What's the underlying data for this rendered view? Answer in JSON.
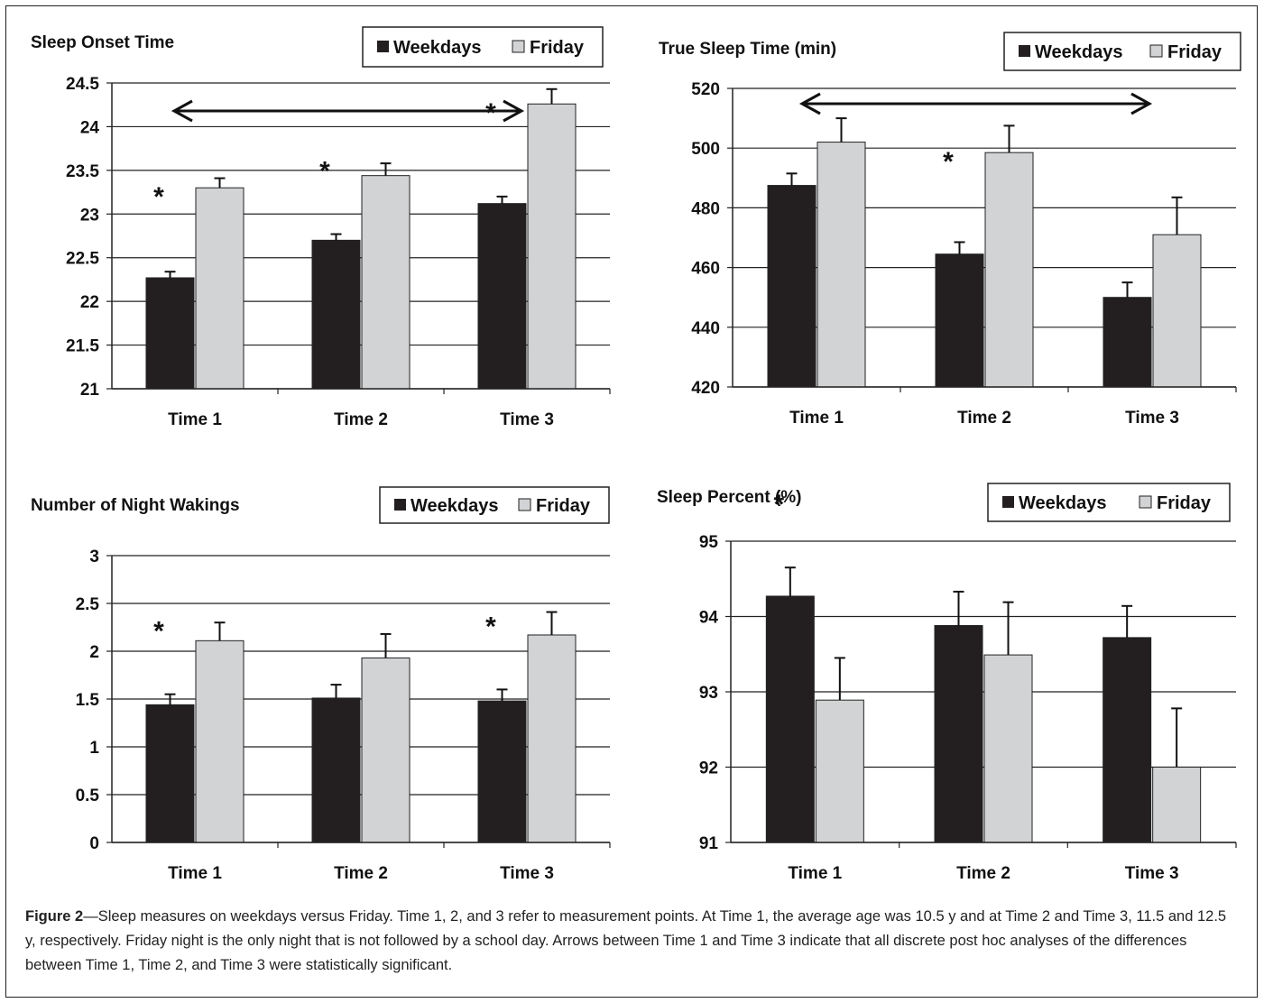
{
  "legend": {
    "weekdays": "Weekdays",
    "friday": "Friday"
  },
  "colors": {
    "weekdays": "#231f20",
    "friday": "#d2d3d5",
    "grid": "#222222"
  },
  "chart_data": [
    {
      "type": "bar",
      "title": "Sleep Onset Time",
      "categories": [
        "Time 1",
        "Time 2",
        "Time 3"
      ],
      "ylim": [
        21,
        24.5
      ],
      "yticks": [
        21,
        21.5,
        22,
        22.5,
        23,
        23.5,
        24,
        24.5
      ],
      "series": [
        {
          "name": "Weekdays",
          "values": [
            22.27,
            22.7,
            23.12
          ],
          "errors": [
            0.07,
            0.07,
            0.08
          ]
        },
        {
          "name": "Friday",
          "values": [
            23.3,
            23.44,
            24.26
          ],
          "errors": [
            0.11,
            0.14,
            0.17
          ]
        }
      ],
      "significance": [
        "*",
        "*",
        "*"
      ],
      "arrow": true,
      "legend_position": "top-right"
    },
    {
      "type": "bar",
      "title": "True Sleep Time (min)",
      "categories": [
        "Time 1",
        "Time 2",
        "Time 3"
      ],
      "ylim": [
        420,
        520
      ],
      "yticks": [
        420,
        440,
        460,
        480,
        500,
        520
      ],
      "series": [
        {
          "name": "Weekdays",
          "values": [
            487.5,
            464.5,
            450
          ],
          "errors": [
            4,
            4,
            5
          ]
        },
        {
          "name": "Friday",
          "values": [
            502,
            498.5,
            471
          ],
          "errors": [
            8,
            9,
            12.5
          ]
        }
      ],
      "significance": [
        "",
        "*",
        ""
      ],
      "arrow": true,
      "legend_position": "top-right"
    },
    {
      "type": "bar",
      "title": "Number of Night Wakings",
      "categories": [
        "Time 1",
        "Time 2",
        "Time 3"
      ],
      "ylim": [
        0,
        3
      ],
      "yticks": [
        0,
        0.5,
        1,
        1.5,
        2,
        2.5,
        3
      ],
      "series": [
        {
          "name": "Weekdays",
          "values": [
            1.44,
            1.51,
            1.48
          ],
          "errors": [
            0.11,
            0.14,
            0.12
          ]
        },
        {
          "name": "Friday",
          "values": [
            2.11,
            1.93,
            2.17
          ],
          "errors": [
            0.19,
            0.25,
            0.24
          ]
        }
      ],
      "significance": [
        "*",
        "",
        "*"
      ],
      "arrow": false,
      "legend_position": "top-right"
    },
    {
      "type": "bar",
      "title": "Sleep Percent (%)",
      "categories": [
        "Time 1",
        "Time 2",
        "Time 3"
      ],
      "ylim": [
        91,
        95
      ],
      "yticks": [
        91,
        92,
        93,
        94,
        95
      ],
      "series": [
        {
          "name": "Weekdays",
          "values": [
            94.27,
            93.88,
            93.72
          ],
          "errors": [
            0.38,
            0.45,
            0.42
          ]
        },
        {
          "name": "Friday",
          "values": [
            92.89,
            93.49,
            92.0
          ],
          "errors": [
            0.56,
            0.7,
            0.78
          ]
        }
      ],
      "significance": [
        "*",
        "",
        ""
      ],
      "arrow": false,
      "legend_position": "top-right"
    }
  ],
  "caption": {
    "label": "Figure 2",
    "text": "—Sleep measures on weekdays versus Friday. Time 1, 2, and 3 refer to measurement points. At Time 1, the average age was 10.5 y and at Time 2 and Time 3, 11.5 and 12.5 y, respectively. Friday night is the only night that is not followed by a school day. Arrows between Time 1 and Time 3 indicate that all discrete post hoc analyses of the differences between Time 1, Time 2, and Time 3 were statistically significant."
  }
}
